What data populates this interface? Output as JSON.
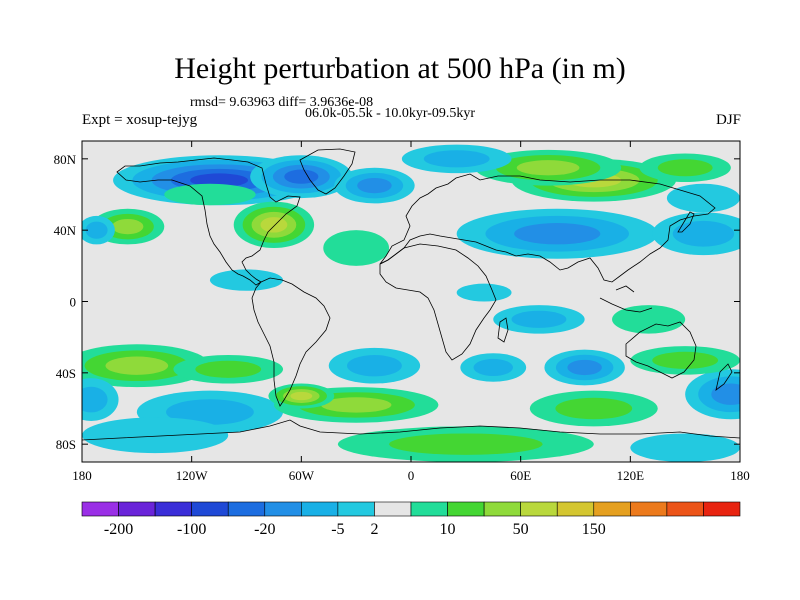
{
  "title": "Height perturbation at 500 hPa (in m)",
  "stats_line": "rmsd= 9.63963 diff= 3.9636e-08",
  "period_line": "06.0k-05.5k - 10.0kyr-09.5kyr",
  "experiment_line": "Expt = xosup-tejyg",
  "season": "DJF",
  "chart_data": {
    "type": "heatmap",
    "projection": "cylindrical-equidistant",
    "xlim": [
      -180,
      180
    ],
    "ylim": [
      -90,
      90
    ],
    "x_ticks": [
      -180,
      -120,
      -60,
      0,
      60,
      120,
      180
    ],
    "x_tick_labels": [
      "180",
      "120W",
      "60W",
      "0",
      "60E",
      "120E",
      "180"
    ],
    "y_ticks": [
      80,
      40,
      0,
      -40,
      -80
    ],
    "y_tick_labels": [
      "80N",
      "40N",
      "0",
      "40S",
      "80S"
    ],
    "colorbar": {
      "colors": [
        "#9a2fe6",
        "#6a24d9",
        "#3a2ed8",
        "#1f49d6",
        "#1d6de0",
        "#228fe6",
        "#19b0e6",
        "#23c9e0",
        "#e6e6e6",
        "#22dd99",
        "#44d633",
        "#8fda3a",
        "#b9d83c",
        "#d4c630",
        "#e5a020",
        "#ec7a1c",
        "#ec5418",
        "#e82410"
      ],
      "tick_labels": [
        "-200",
        "-100",
        "-20",
        "-5",
        "2",
        "10",
        "50",
        "150"
      ],
      "tick_after_box": [
        1,
        3,
        5,
        7,
        8,
        10,
        12,
        14
      ]
    },
    "anomaly_blobs": [
      {
        "lon": -105,
        "lat": 68,
        "value": -60,
        "rlon": 58,
        "rlat": 14
      },
      {
        "lon": -60,
        "lat": 70,
        "value": -40,
        "rlon": 28,
        "rlat": 12
      },
      {
        "lon": -20,
        "lat": 65,
        "value": -15,
        "rlon": 22,
        "rlat": 10
      },
      {
        "lon": 25,
        "lat": 80,
        "value": -6,
        "rlon": 30,
        "rlat": 8
      },
      {
        "lon": 100,
        "lat": 68,
        "value": 35,
        "rlon": 45,
        "rlat": 12
      },
      {
        "lon": 75,
        "lat": 75,
        "value": 12,
        "rlon": 40,
        "rlat": 10
      },
      {
        "lon": 150,
        "lat": 75,
        "value": 6,
        "rlon": 25,
        "rlat": 8
      },
      {
        "lon": -155,
        "lat": 42,
        "value": 12,
        "rlon": 20,
        "rlat": 10
      },
      {
        "lon": -172,
        "lat": 40,
        "value": -5,
        "rlon": 10,
        "rlat": 8
      },
      {
        "lon": -110,
        "lat": 60,
        "value": 4,
        "rlon": 25,
        "rlat": 6
      },
      {
        "lon": -75,
        "lat": 43,
        "value": 25,
        "rlon": 22,
        "rlat": 13
      },
      {
        "lon": -30,
        "lat": 30,
        "value": 4,
        "rlon": 18,
        "rlat": 10
      },
      {
        "lon": 80,
        "lat": 38,
        "value": -14,
        "rlon": 55,
        "rlat": 14
      },
      {
        "lon": 160,
        "lat": 38,
        "value": -6,
        "rlon": 28,
        "rlat": 12
      },
      {
        "lon": 160,
        "lat": 58,
        "value": -4,
        "rlon": 20,
        "rlat": 8
      },
      {
        "lon": -90,
        "lat": 12,
        "value": -3,
        "rlon": 20,
        "rlat": 6
      },
      {
        "lon": 40,
        "lat": 5,
        "value": -3,
        "rlon": 15,
        "rlat": 5
      },
      {
        "lon": 70,
        "lat": -10,
        "value": -5,
        "rlon": 25,
        "rlat": 8
      },
      {
        "lon": 130,
        "lat": -10,
        "value": 3,
        "rlon": 20,
        "rlat": 8
      },
      {
        "lon": -150,
        "lat": -36,
        "value": 10,
        "rlon": 40,
        "rlat": 12
      },
      {
        "lon": -100,
        "lat": -38,
        "value": 6,
        "rlon": 30,
        "rlat": 8
      },
      {
        "lon": -20,
        "lat": -36,
        "value": -8,
        "rlon": 25,
        "rlat": 10
      },
      {
        "lon": 45,
        "lat": -37,
        "value": -6,
        "rlon": 18,
        "rlat": 8
      },
      {
        "lon": 95,
        "lat": -37,
        "value": -10,
        "rlon": 22,
        "rlat": 10
      },
      {
        "lon": 150,
        "lat": -33,
        "value": 6,
        "rlon": 30,
        "rlat": 8
      },
      {
        "lon": 175,
        "lat": -52,
        "value": -12,
        "rlon": 25,
        "rlat": 14
      },
      {
        "lon": -175,
        "lat": -55,
        "value": -8,
        "rlon": 15,
        "rlat": 12
      },
      {
        "lon": 100,
        "lat": -60,
        "value": 8,
        "rlon": 35,
        "rlat": 10
      },
      {
        "lon": -30,
        "lat": -58,
        "value": 18,
        "rlon": 45,
        "rlat": 10
      },
      {
        "lon": -60,
        "lat": -53,
        "value": 25,
        "rlon": 18,
        "rlat": 7
      },
      {
        "lon": -110,
        "lat": -62,
        "value": -5,
        "rlon": 40,
        "rlat": 12
      },
      {
        "lon": 30,
        "lat": -80,
        "value": 6,
        "rlon": 70,
        "rlat": 10
      },
      {
        "lon": -140,
        "lat": -75,
        "value": -4,
        "rlon": 40,
        "rlat": 10
      },
      {
        "lon": 150,
        "lat": -82,
        "value": -3,
        "rlon": 30,
        "rlat": 8
      }
    ]
  }
}
